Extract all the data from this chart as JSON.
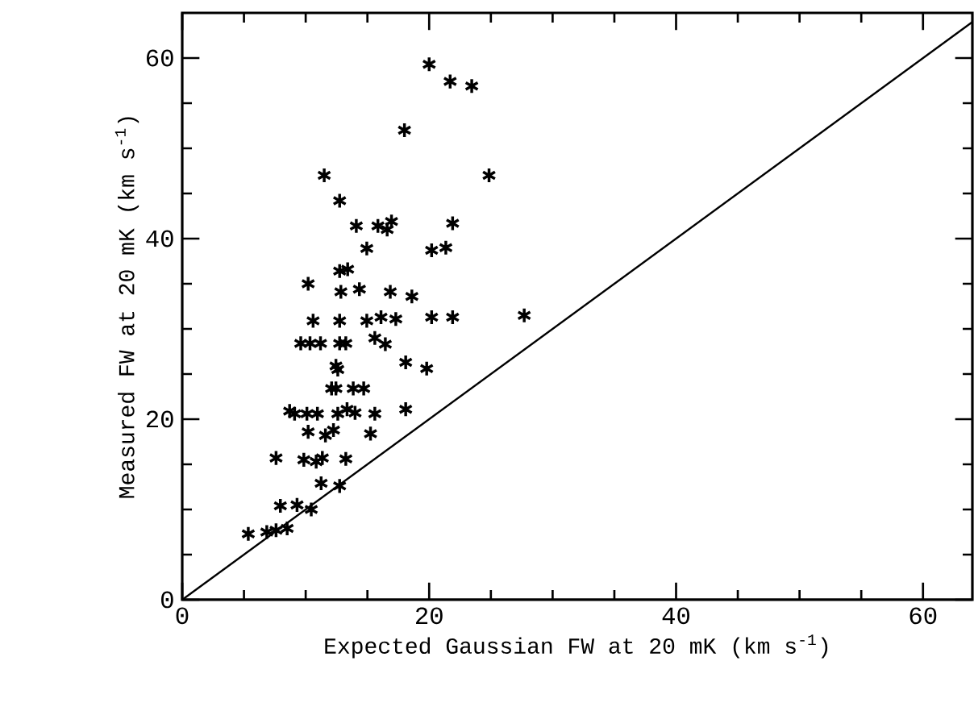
{
  "chart_data": {
    "type": "scatter",
    "xlabel": "Expected Gaussian FW at 20 mK (km s$^{-1}$)",
    "ylabel": "Measured FW at 20 mK (km s$^{-1}$)",
    "xlim": [
      0,
      64
    ],
    "ylim": [
      0,
      65
    ],
    "xticks": [
      0,
      {
        "value": 5,
        "label": null
      },
      {
        "value": 10,
        "label": null
      },
      {
        "value": 15,
        "label": null
      },
      20,
      {
        "value": 25,
        "label": null
      },
      {
        "value": 30,
        "label": null
      },
      {
        "value": 35,
        "label": null
      },
      40,
      {
        "value": 45,
        "label": null
      },
      {
        "value": 50,
        "label": null
      },
      {
        "value": 55,
        "label": null
      },
      60
    ],
    "yticks": [
      0,
      {
        "value": 5,
        "label": null
      },
      {
        "value": 10,
        "label": null
      },
      {
        "value": 15,
        "label": null
      },
      20,
      {
        "value": 25,
        "label": null
      },
      {
        "value": 30,
        "label": null
      },
      {
        "value": 35,
        "label": null
      },
      40,
      {
        "value": 45,
        "label": null
      },
      {
        "value": 50,
        "label": null
      },
      {
        "value": 55,
        "label": null
      },
      60
    ],
    "grid": false,
    "series": [
      {
        "color": "#000000",
        "marker": "cross",
        "x": [
          5.35,
          6.85,
          7.6,
          8.5,
          7.6,
          7.95,
          9.3,
          10.45,
          8.7,
          9.1,
          10.1,
          10.95,
          9.6,
          10.35,
          11.2,
          10.2,
          10.6,
          11.5,
          12.75,
          10.2,
          11.6,
          12.25,
          9.85,
          10.85,
          11.35,
          11.25,
          12.75,
          13.25,
          12.1,
          12.45,
          13.85,
          14.7,
          12.6,
          13.35,
          14.0,
          15.6,
          15.25,
          12.45,
          12.6,
          12.75,
          13.25,
          12.75,
          12.85,
          12.75,
          13.4,
          14.35,
          14.1,
          14.95,
          14.95,
          16.1,
          17.3,
          15.6,
          16.45,
          15.85,
          16.6,
          16.95,
          16.85,
          18.6,
          18.1,
          19.8,
          18.1,
          18.0,
          20.0,
          21.7,
          23.45,
          24.85,
          20.2,
          21.35,
          21.9,
          20.2,
          21.9,
          27.7
        ],
        "values": [
          7.3,
          7.5,
          7.7,
          7.9,
          15.7,
          10.4,
          10.5,
          10.0,
          20.9,
          20.6,
          20.6,
          20.6,
          28.4,
          28.4,
          28.4,
          35.0,
          30.9,
          47.0,
          44.2,
          18.6,
          18.2,
          18.8,
          15.5,
          15.3,
          15.7,
          12.9,
          12.6,
          15.6,
          23.4,
          23.4,
          23.4,
          23.4,
          20.6,
          21.1,
          20.7,
          20.6,
          18.4,
          25.9,
          25.5,
          28.4,
          28.4,
          30.9,
          34.1,
          36.4,
          36.6,
          34.4,
          41.4,
          38.9,
          30.9,
          31.3,
          31.1,
          29.0,
          28.3,
          41.4,
          41.0,
          41.9,
          34.1,
          33.6,
          26.3,
          25.6,
          21.1,
          52.0,
          59.3,
          57.4,
          56.9,
          47.0,
          38.7,
          39.0,
          41.7,
          31.3,
          31.3,
          31.5
        ]
      },
      {
        "type": "line",
        "color": "#000000",
        "marker": "none",
        "line_style": "solid",
        "x": [
          0,
          64
        ],
        "values": [
          0,
          64
        ]
      }
    ]
  }
}
